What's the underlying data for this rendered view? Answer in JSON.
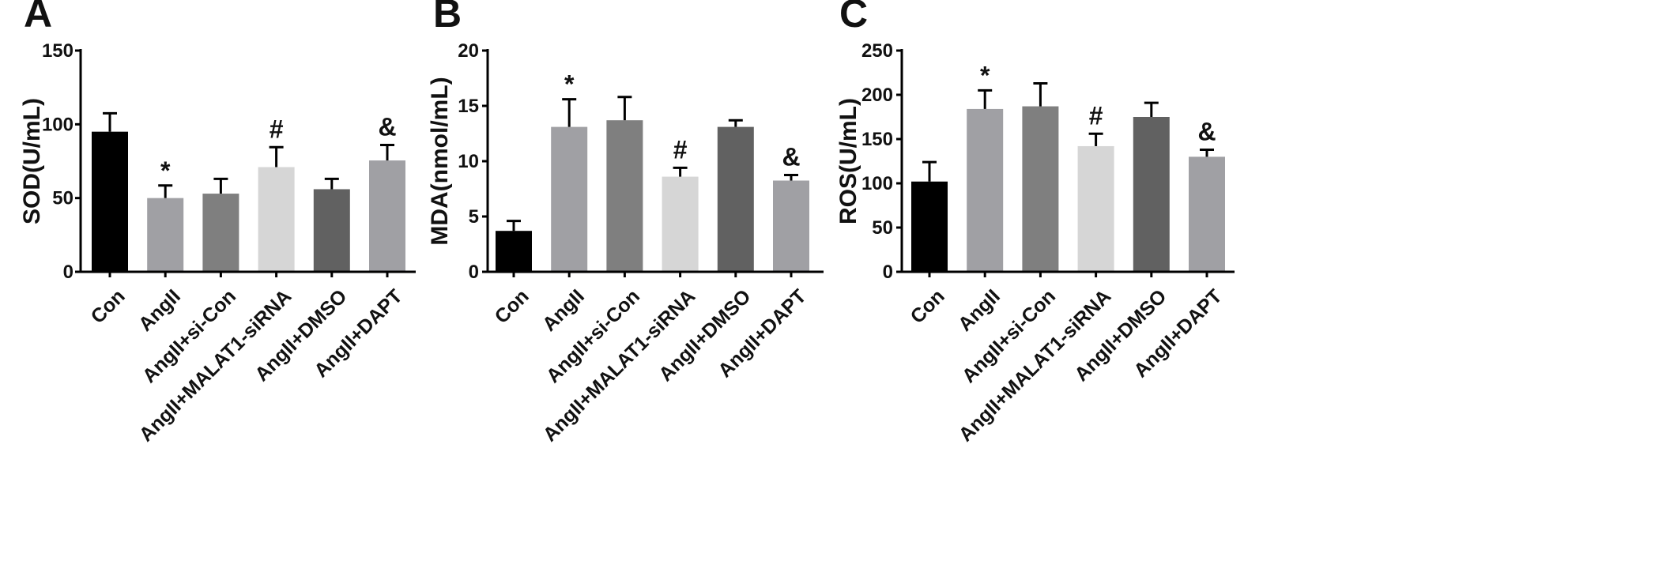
{
  "figure": {
    "bar_colors": [
      "#000000",
      "#a0a0a4",
      "#7f7f7f",
      "#d6d6d6",
      "#616161",
      "#a0a0a4"
    ],
    "axis_color": "#000000"
  },
  "chart_data": [
    {
      "type": "bar",
      "panel": "A",
      "ylabel": "SOD(U/mL)",
      "xlabel": "",
      "ylim": [
        0,
        150
      ],
      "yticks": [
        0,
        50,
        100,
        150
      ],
      "grid": false,
      "legend": "none",
      "categories": [
        "Con",
        "AngII",
        "AngII+si-Con",
        "AngII+MALAT1-siRNA",
        "AngII+DMSO",
        "AngII+DAPT"
      ],
      "values": [
        95,
        50,
        53,
        71,
        56,
        75.5
      ],
      "errors": [
        12.5,
        8.5,
        10,
        13.5,
        7,
        10.5
      ],
      "annotations": [
        "",
        "*",
        "",
        "#",
        "",
        "&"
      ]
    },
    {
      "type": "bar",
      "panel": "B",
      "ylabel": "MDA(nmol/mL)",
      "xlabel": "",
      "ylim": [
        0,
        20
      ],
      "yticks": [
        0,
        5,
        10,
        15,
        20
      ],
      "grid": false,
      "legend": "none",
      "categories": [
        "Con",
        "AngII",
        "AngII+si-Con",
        "AngII+MALAT1-siRNA",
        "AngII+DMSO",
        "AngII+DAPT"
      ],
      "values": [
        3.7,
        13.1,
        13.7,
        8.6,
        13.1,
        8.25
      ],
      "errors": [
        0.9,
        2.5,
        2.1,
        0.8,
        0.6,
        0.5
      ],
      "annotations": [
        "",
        "*",
        "",
        "#",
        "",
        "&"
      ]
    },
    {
      "type": "bar",
      "panel": "C",
      "ylabel": "ROS(U/mL)",
      "xlabel": "",
      "ylim": [
        0,
        250
      ],
      "yticks": [
        0,
        50,
        100,
        150,
        200,
        250
      ],
      "grid": false,
      "legend": "none",
      "categories": [
        "Con",
        "AngII",
        "AngII+si-Con",
        "AngII+MALAT1-siRNA",
        "AngII+DMSO",
        "AngII+DAPT"
      ],
      "values": [
        102,
        184,
        187,
        142,
        175,
        130
      ],
      "errors": [
        22,
        21,
        26,
        14,
        16,
        8
      ],
      "annotations": [
        "",
        "*",
        "",
        "#",
        "",
        "&"
      ]
    }
  ]
}
